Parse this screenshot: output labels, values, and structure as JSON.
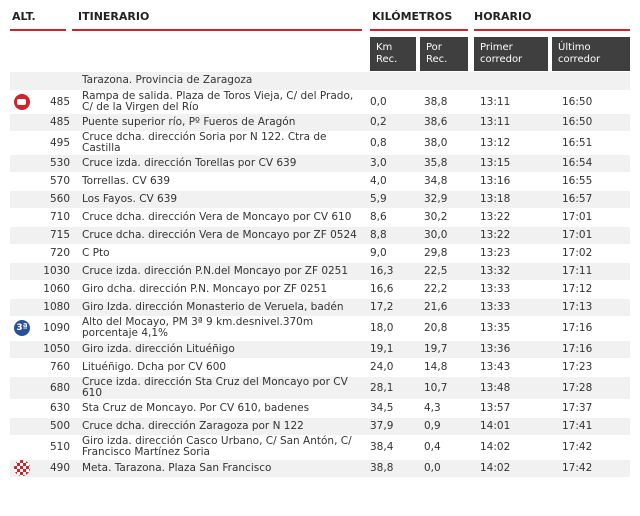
{
  "headers": {
    "alt": "ALT.",
    "itinerario": "ITINERARIO",
    "kilometros": "KILÓMETROS",
    "horario": "HORARIO"
  },
  "subheaders": {
    "km_rec": "Km\nRec.",
    "por_rec": "Por\nRec.",
    "primer": "Primer\ncorredor",
    "ultimo": "Último\ncorredor"
  },
  "colors": {
    "accent": "#d0222a",
    "subheader_bg": "#3f3f3f",
    "row_alt": "#f1f1f1"
  },
  "rows": [
    {
      "icon": "",
      "alt": "",
      "itinerario": "Tarazona. Provincia de Zaragoza",
      "km": "",
      "por": "",
      "primer": "",
      "ultimo": ""
    },
    {
      "icon": "start-icon",
      "alt": "485",
      "itinerario": "Rampa de salida. Plaza de Toros Vieja, C/ del Prado, C/ de la Virgen del Río",
      "km": "0,0",
      "por": "38,8",
      "primer": "13:11",
      "ultimo": "16:50"
    },
    {
      "icon": "",
      "alt": "485",
      "itinerario": "Puente superior río, Pº Fueros de Aragón",
      "km": "0,2",
      "por": "38,6",
      "primer": "13:11",
      "ultimo": "16:50"
    },
    {
      "icon": "",
      "alt": "495",
      "itinerario": "Cruce dcha. dirección Soria por N 122. Ctra de Castilla",
      "km": "0,8",
      "por": "38,0",
      "primer": "13:12",
      "ultimo": "16:51"
    },
    {
      "icon": "",
      "alt": "530",
      "itinerario": "Cruce izda. dirección Torellas por CV 639",
      "km": "3,0",
      "por": "35,8",
      "primer": "13:15",
      "ultimo": "16:54"
    },
    {
      "icon": "",
      "alt": "570",
      "itinerario": "Torrellas. CV 639",
      "km": "4,0",
      "por": "34,8",
      "primer": "13:16",
      "ultimo": "16:55"
    },
    {
      "icon": "",
      "alt": "560",
      "itinerario": "Los Fayos. CV 639",
      "km": "5,9",
      "por": "32,9",
      "primer": "13:18",
      "ultimo": "16:57"
    },
    {
      "icon": "",
      "alt": "710",
      "itinerario": "Cruce dcha. dirección Vera de Moncayo por CV 610",
      "km": "8,6",
      "por": "30,2",
      "primer": "13:22",
      "ultimo": "17:01"
    },
    {
      "icon": "",
      "alt": "715",
      "itinerario": "Cruce dcha. dirección Vera de Moncayo por ZF 0524",
      "km": "8,8",
      "por": "30,0",
      "primer": "13:22",
      "ultimo": "17:01"
    },
    {
      "icon": "",
      "alt": "720",
      "itinerario": "C Pto",
      "km": "9,0",
      "por": "29,8",
      "primer": "13:23",
      "ultimo": "17:02"
    },
    {
      "icon": "",
      "alt": "1030",
      "itinerario": "Cruce izda. dirección P.N.del Moncayo por ZF 0251",
      "km": "16,3",
      "por": "22,5",
      "primer": "13:32",
      "ultimo": "17:11"
    },
    {
      "icon": "",
      "alt": "1060",
      "itinerario": "Giro dcha. dirección P.N. Moncayo por ZF 0251",
      "km": "16,6",
      "por": "22,2",
      "primer": "13:33",
      "ultimo": "17:12"
    },
    {
      "icon": "",
      "alt": "1080",
      "itinerario": "Giro Izda. dirección Monasterio de Veruela, badén",
      "km": "17,2",
      "por": "21,6",
      "primer": "13:33",
      "ultimo": "17:13"
    },
    {
      "icon": "climb-icon",
      "alt": "1090",
      "itinerario": "Alto del Mocayo, PM 3ª 9 km.desnivel.370m porcentaje 4,1%",
      "km": "18,0",
      "por": "20,8",
      "primer": "13:35",
      "ultimo": "17:16"
    },
    {
      "icon": "",
      "alt": "1050",
      "itinerario": "Giro izda. dirección Lituéñigo",
      "km": "19,1",
      "por": "19,7",
      "primer": "13:36",
      "ultimo": "17:16"
    },
    {
      "icon": "",
      "alt": "760",
      "itinerario": "Lituéñigo. Dcha por CV 600",
      "km": "24,0",
      "por": "14,8",
      "primer": "13:43",
      "ultimo": "17:23"
    },
    {
      "icon": "",
      "alt": "680",
      "itinerario": "Cruce izda. dirección Sta Cruz del Moncayo por CV 610",
      "km": "28,1",
      "por": "10,7",
      "primer": "13:48",
      "ultimo": "17:28"
    },
    {
      "icon": "",
      "alt": "630",
      "itinerario": "Sta Cruz de Moncayo. Por CV 610, badenes",
      "km": "34,5",
      "por": "4,3",
      "primer": "13:57",
      "ultimo": "17:37"
    },
    {
      "icon": "",
      "alt": "500",
      "itinerario": "Cruce dcha. dirección Zaragoza por N 122",
      "km": "37,9",
      "por": "0,9",
      "primer": "14:01",
      "ultimo": "17:41"
    },
    {
      "icon": "",
      "alt": "510",
      "itinerario": "Giro izda. dirección Casco Urbano, C/ San Antón, C/ Francisco Martínez Soria",
      "km": "38,4",
      "por": "0,4",
      "primer": "14:02",
      "ultimo": "17:42"
    },
    {
      "icon": "finish-icon",
      "alt": "490",
      "itinerario": "Meta. Tarazona. Plaza San Francisco",
      "km": "38,8",
      "por": "0,0",
      "primer": "14:02",
      "ultimo": "17:42"
    }
  ]
}
